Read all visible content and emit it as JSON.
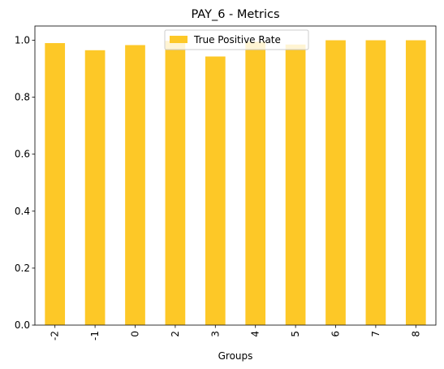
{
  "chart_data": {
    "type": "bar",
    "title": "PAY_6 - Metrics",
    "xlabel": "Groups",
    "ylabel": "",
    "categories": [
      "-2",
      "-1",
      "0",
      "2",
      "3",
      "4",
      "5",
      "6",
      "7",
      "8"
    ],
    "series": [
      {
        "name": "True Positive Rate",
        "values": [
          0.99,
          0.965,
          0.983,
          0.998,
          0.943,
          0.995,
          0.985,
          1.0,
          1.0,
          1.0
        ]
      }
    ],
    "ylim": [
      0,
      1.05
    ],
    "yticks": [
      "0.0",
      "0.2",
      "0.4",
      "0.6",
      "0.8",
      "1.0"
    ],
    "grid": false,
    "legend_position": "top-center",
    "bar_color": "#fdc827"
  }
}
